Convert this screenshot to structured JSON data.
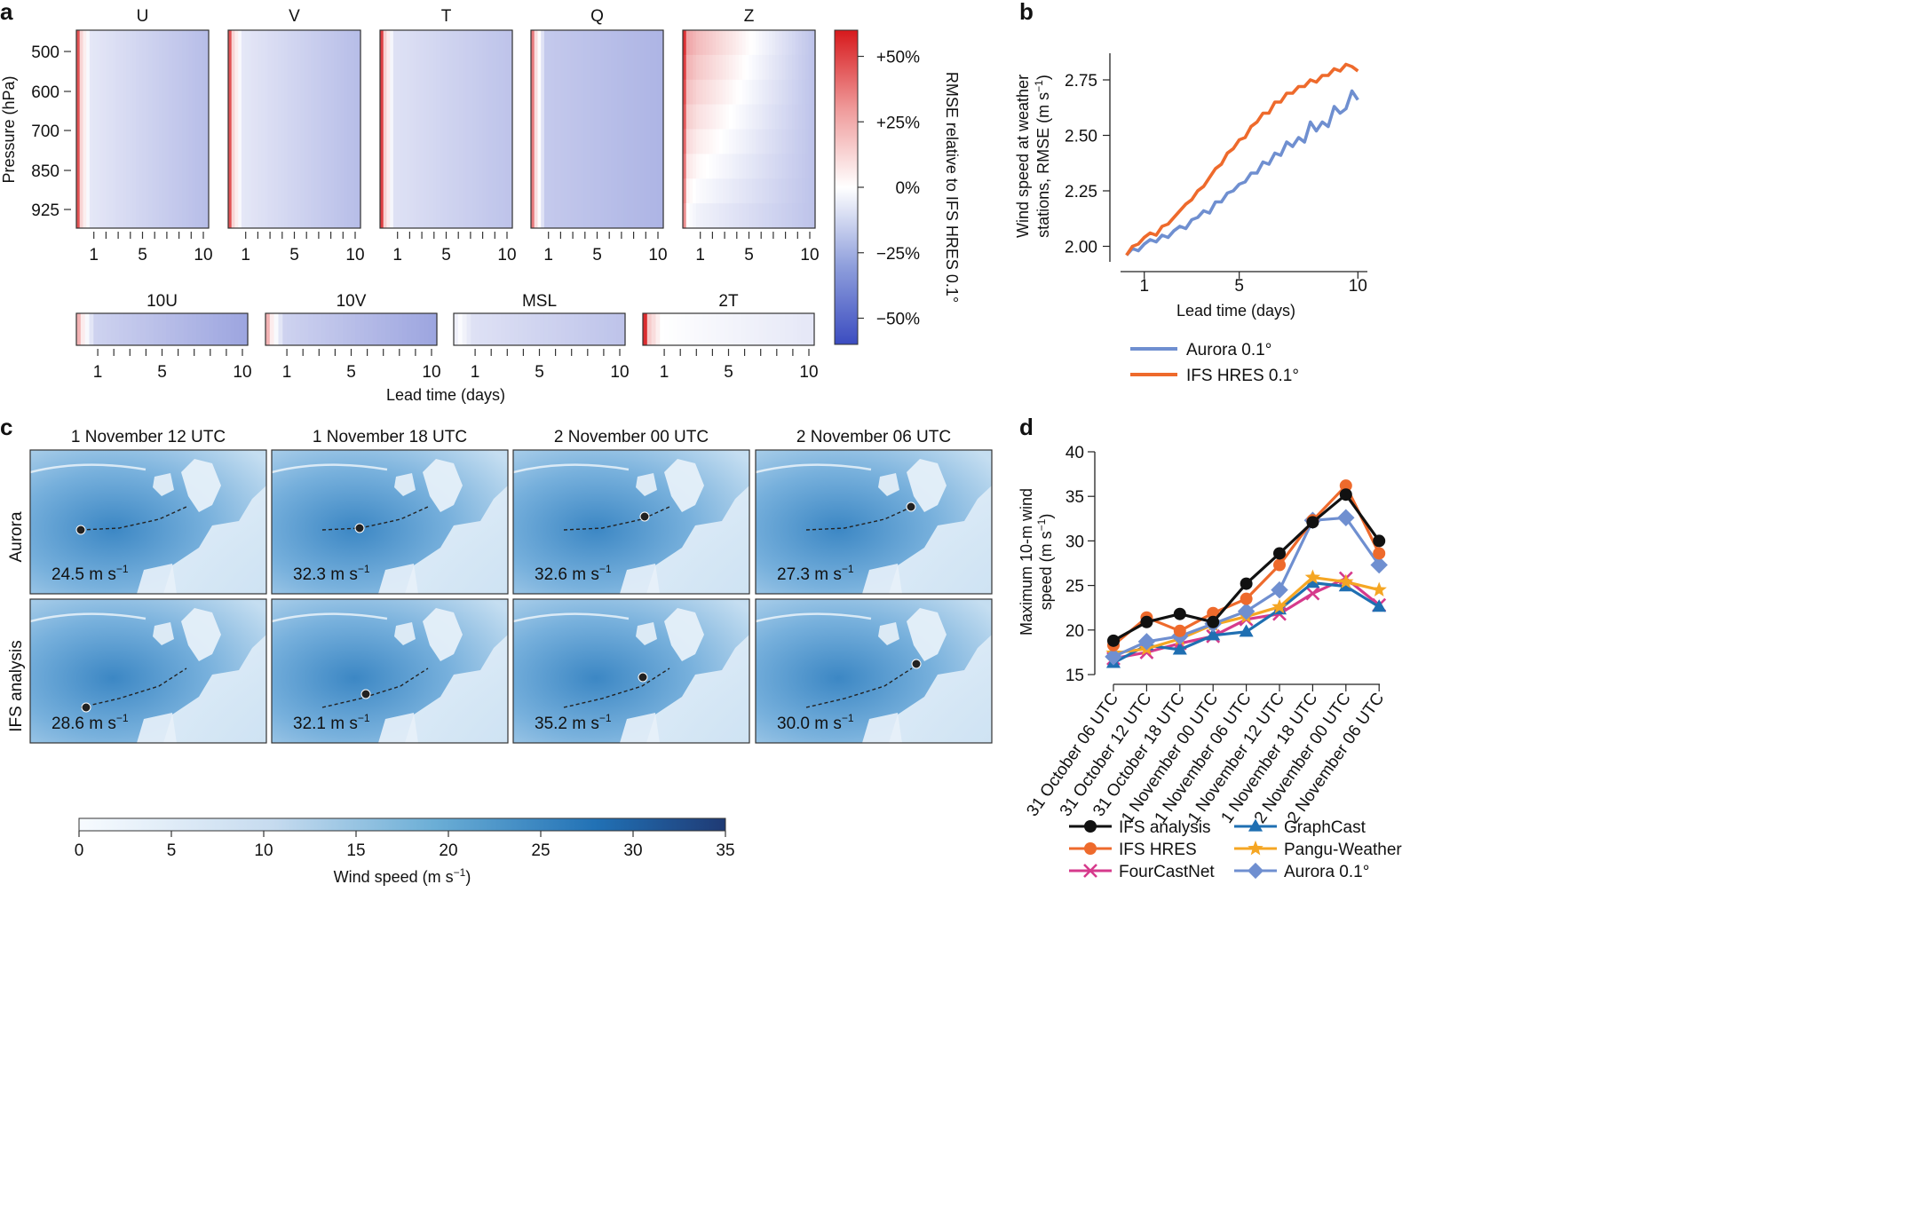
{
  "panel_labels": {
    "a": "a",
    "b": "b",
    "c": "c",
    "d": "d"
  },
  "colors": {
    "pos": "#d7191c",
    "neg": "#3b4cc0",
    "mid": "#ffffff",
    "wind_light": "#f7fbff",
    "wind_dark": "#1f3a74",
    "aurora": "#6f8fd0",
    "ifs_hres": "#ee6a2c",
    "ifs_analysis": "#111111",
    "fourcastnet": "#d63a8c",
    "graphcast": "#1f6fb2",
    "pangu": "#f5a623",
    "aurora_d": "#6f8fd0"
  },
  "chart_data": [
    {
      "id": "a",
      "type": "heatmap",
      "titles_top": [
        "U",
        "V",
        "T",
        "Q",
        "Z"
      ],
      "titles_bottom": [
        "10U",
        "10V",
        "MSL",
        "2T"
      ],
      "ylabel": "Pressure (hPa)",
      "yticks": [
        "500",
        "600",
        "700",
        "850",
        "925"
      ],
      "xticks": [
        "1",
        "5",
        "10"
      ],
      "xlabel": "Lead time (days)",
      "value_range": [
        -60,
        60
      ],
      "colorbar": {
        "label": "RMSE relative to IFS HRES 0.1°",
        "ticks": [
          "+50%",
          "+25%",
          "0%",
          "−25%",
          "−50%"
        ],
        "tick_values": [
          50,
          25,
          0,
          -25,
          -50
        ]
      },
      "approx_relative_rmse_pct": {
        "U": {
          "day0": 45,
          "day1": -8,
          "day10": -22
        },
        "V": {
          "day0": 45,
          "day1": -8,
          "day10": -22
        },
        "T": {
          "day0": 50,
          "day1": -10,
          "day10": -20
        },
        "Q": {
          "day0": 35,
          "day1": -18,
          "day10": -25
        },
        "Z": {
          "day0": 40,
          "day1": 5,
          "day10": -20
        },
        "10U": {
          "day0": 20,
          "day1": -15,
          "day10": -30
        },
        "10V": {
          "day0": 20,
          "day1": -15,
          "day10": -30
        },
        "MSL": {
          "day0": -5,
          "day1": -10,
          "day10": -20
        },
        "2T": {
          "day0": 55,
          "day1": 0,
          "day10": -8
        }
      }
    },
    {
      "id": "b",
      "type": "line",
      "ylabel_line1": "Wind speed at weather",
      "ylabel_line2": "stations, RMSE (m s",
      "ylabel_sup": "−1",
      "ylabel_close": ")",
      "xlabel": "Lead time (days)",
      "xticks": [
        1,
        5,
        10
      ],
      "yticks": [
        "2.00",
        "2.25",
        "2.50",
        "2.75"
      ],
      "xlim": [
        0,
        10.4
      ],
      "ylim": [
        1.93,
        2.87
      ],
      "series": [
        {
          "name": "Aurora 0.1°",
          "x": [
            0.25,
            0.5,
            0.75,
            1,
            1.25,
            1.5,
            1.75,
            2,
            2.25,
            2.5,
            2.75,
            3,
            3.25,
            3.5,
            3.75,
            4,
            4.25,
            4.5,
            4.75,
            5,
            5.25,
            5.5,
            5.75,
            6,
            6.25,
            6.5,
            6.75,
            7,
            7.25,
            7.5,
            7.75,
            8,
            8.25,
            8.5,
            8.75,
            9,
            9.25,
            9.5,
            9.75,
            10
          ],
          "y": [
            1.96,
            1.99,
            1.98,
            2.01,
            2.03,
            2.02,
            2.05,
            2.04,
            2.07,
            2.09,
            2.08,
            2.12,
            2.13,
            2.16,
            2.15,
            2.2,
            2.2,
            2.24,
            2.25,
            2.28,
            2.29,
            2.33,
            2.33,
            2.38,
            2.37,
            2.42,
            2.41,
            2.47,
            2.45,
            2.49,
            2.47,
            2.56,
            2.52,
            2.56,
            2.54,
            2.63,
            2.6,
            2.62,
            2.7,
            2.66
          ]
        },
        {
          "name": "IFS HRES 0.1°",
          "x": [
            0.25,
            0.5,
            0.75,
            1,
            1.25,
            1.5,
            1.75,
            2,
            2.25,
            2.5,
            2.75,
            3,
            3.25,
            3.5,
            3.75,
            4,
            4.25,
            4.5,
            4.75,
            5,
            5.25,
            5.5,
            5.75,
            6,
            6.25,
            6.5,
            6.75,
            7,
            7.25,
            7.5,
            7.75,
            8,
            8.25,
            8.5,
            8.75,
            9,
            9.25,
            9.5,
            9.75,
            10
          ],
          "y": [
            1.96,
            2.0,
            2.01,
            2.04,
            2.06,
            2.05,
            2.09,
            2.1,
            2.13,
            2.16,
            2.19,
            2.21,
            2.25,
            2.27,
            2.31,
            2.35,
            2.37,
            2.42,
            2.44,
            2.48,
            2.49,
            2.54,
            2.56,
            2.6,
            2.6,
            2.65,
            2.65,
            2.69,
            2.69,
            2.72,
            2.72,
            2.75,
            2.74,
            2.77,
            2.77,
            2.8,
            2.79,
            2.82,
            2.81,
            2.79
          ]
        }
      ]
    },
    {
      "id": "c",
      "type": "map_grid",
      "column_titles": [
        "1 November 12 UTC",
        "1 November 18 UTC",
        "2 November 00 UTC",
        "2 November 06 UTC"
      ],
      "row_labels": [
        "Aurora",
        "IFS analysis"
      ],
      "values_aurora": [
        "24.5",
        "32.3",
        "32.6",
        "27.3"
      ],
      "values_ifs": [
        "28.6",
        "32.1",
        "35.2",
        "30.0"
      ],
      "unit_base": "m s",
      "unit_sup": "−1",
      "colorbar": {
        "ticks": [
          "0",
          "5",
          "10",
          "15",
          "20",
          "25",
          "30",
          "35"
        ],
        "range": [
          0,
          35
        ],
        "label": "Wind speed (m s",
        "label_sup": "−1",
        "label_close": ")"
      }
    },
    {
      "id": "d",
      "type": "line",
      "ylabel_line1": "Maximum 10-m wind",
      "ylabel_line2": "speed (m s",
      "ylabel_sup": "−1",
      "ylabel_close": ")",
      "categories": [
        "31 October 06 UTC",
        "31 October 12 UTC",
        "31 October 18 UTC",
        "1 November 00 UTC",
        "1 November 06 UTC",
        "1 November 12 UTC",
        "1 November 18 UTC",
        "2 November 00 UTC",
        "2 November 06 UTC"
      ],
      "yticks": [
        15,
        20,
        25,
        30,
        35,
        40
      ],
      "ylim": [
        15,
        40
      ],
      "series": [
        {
          "name": "IFS analysis",
          "marker": "circle",
          "values": [
            18.8,
            20.9,
            21.8,
            20.9,
            25.2,
            28.6,
            32.1,
            35.2,
            30.0
          ]
        },
        {
          "name": "IFS HRES",
          "marker": "circle",
          "values": [
            18.3,
            21.4,
            19.9,
            21.9,
            23.5,
            27.3,
            32.3,
            36.2,
            28.6
          ]
        },
        {
          "name": "FourCastNet",
          "marker": "x",
          "values": [
            16.8,
            17.5,
            18.5,
            19.3,
            21.2,
            21.8,
            24.1,
            25.8,
            22.8
          ]
        },
        {
          "name": "GraphCast",
          "marker": "triangle",
          "values": [
            16.3,
            18.3,
            17.8,
            19.4,
            19.8,
            22.3,
            25.3,
            24.9,
            22.6
          ]
        },
        {
          "name": "Pangu-Weather",
          "marker": "star",
          "values": [
            17.4,
            17.9,
            19.0,
            20.6,
            21.5,
            22.6,
            25.9,
            25.4,
            24.5
          ]
        },
        {
          "name": "Aurora 0.1°",
          "marker": "diamond",
          "values": [
            17.0,
            18.7,
            19.3,
            20.7,
            22.1,
            24.5,
            32.3,
            32.6,
            27.3
          ]
        }
      ]
    }
  ],
  "legend_b": [
    "Aurora 0.1°",
    "IFS HRES 0.1°"
  ]
}
